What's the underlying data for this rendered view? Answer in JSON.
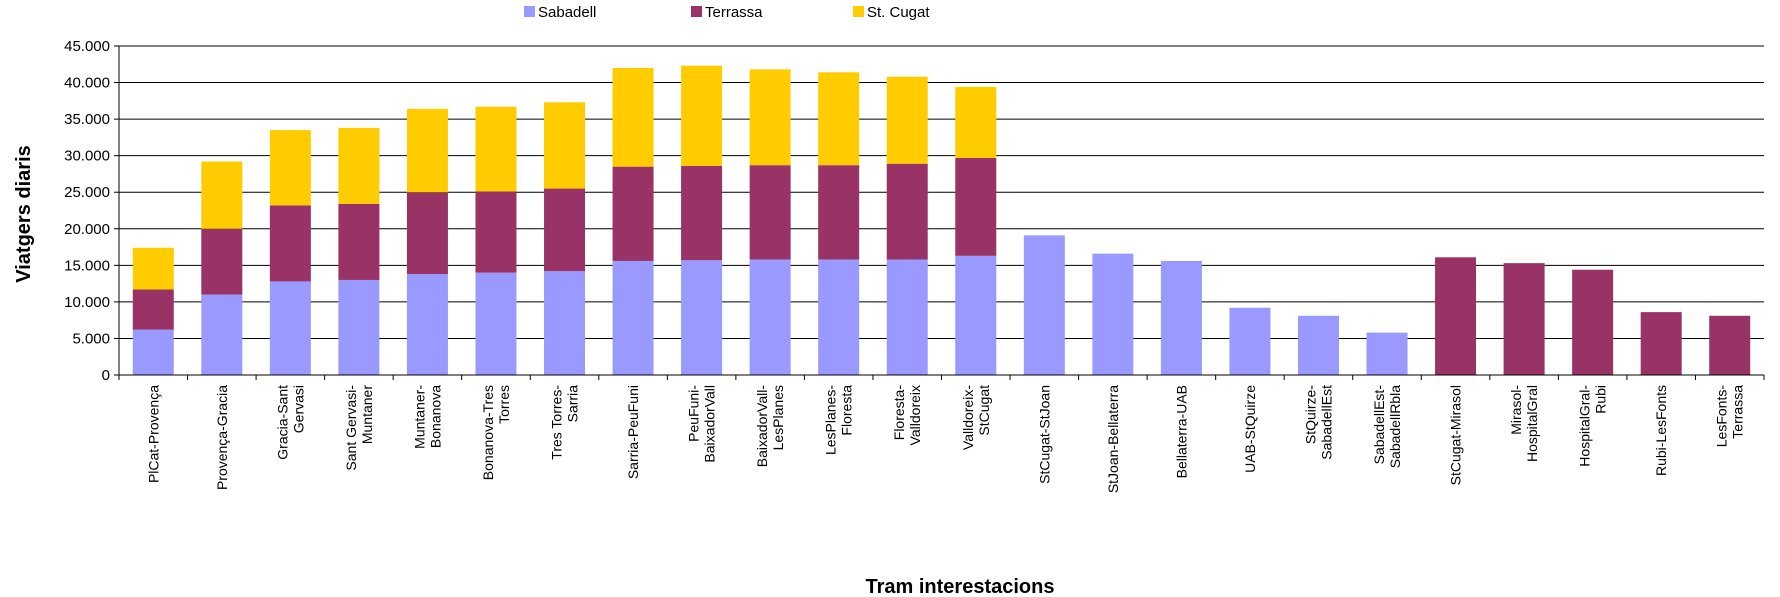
{
  "chart_data": {
    "type": "bar",
    "stacked": true,
    "title": "",
    "xlabel": "Tram interestacions",
    "ylabel": "Viatgers diaris",
    "ylim": [
      0,
      45000
    ],
    "yticks": [
      0,
      5000,
      10000,
      15000,
      20000,
      25000,
      30000,
      35000,
      40000,
      45000
    ],
    "ytick_labels": [
      "0",
      "5.000",
      "10.000",
      "15.000",
      "20.000",
      "25.000",
      "30.000",
      "35.000",
      "40.000",
      "45.000"
    ],
    "grid": true,
    "legend_position": "top-center",
    "categories": [
      [
        "PlCat-Provença"
      ],
      [
        "Provença-Gracia"
      ],
      [
        "Gracia-Sant",
        "Gervasi"
      ],
      [
        "Sant Gervasi-",
        "Muntaner"
      ],
      [
        "Muntaner-",
        "Bonanova"
      ],
      [
        "Bonanova-Tres",
        "Torres"
      ],
      [
        "Tres Torres-",
        "Sarria"
      ],
      [
        "Sarria-PeuFuni"
      ],
      [
        "PeuFuni-",
        "BaixadorVall"
      ],
      [
        "BaixadorVall-",
        "LesPlanes"
      ],
      [
        "LesPlanes-",
        "Floresta"
      ],
      [
        "Floresta-",
        "Valldoreix"
      ],
      [
        "Valldoreix-",
        "StCugat"
      ],
      [
        "StCugat-StJoan"
      ],
      [
        "StJoan-Bellaterra"
      ],
      [
        "Bellaterra-UAB"
      ],
      [
        "UAB-StQuirze"
      ],
      [
        "StQuirze-",
        "SabadellEst"
      ],
      [
        "SabadellEst-",
        "SabadellRbla"
      ],
      [
        "StCugat-Mirasol"
      ],
      [
        "Mirasol-",
        "HospitalGral"
      ],
      [
        "HospitalGral-",
        "Rubi"
      ],
      [
        "Rubi-LesFonts"
      ],
      [
        "LesFonts-",
        "Terrassa"
      ]
    ],
    "series": [
      {
        "name": "Sabadell",
        "color": "#9999ff",
        "values": [
          6200,
          11000,
          12800,
          13000,
          13800,
          14000,
          14200,
          15600,
          15700,
          15800,
          15800,
          15800,
          16300,
          19100,
          16600,
          15600,
          9200,
          8100,
          5800,
          0,
          0,
          0,
          0,
          0
        ]
      },
      {
        "name": "Terrassa",
        "color": "#993366",
        "values": [
          5500,
          9000,
          10400,
          10400,
          11200,
          11100,
          11300,
          12900,
          12900,
          12900,
          12900,
          13100,
          13400,
          0,
          0,
          0,
          0,
          0,
          0,
          16100,
          15300,
          14400,
          8600,
          8100
        ]
      },
      {
        "name": "St. Cugat",
        "color": "#ffcc00",
        "values": [
          5700,
          9200,
          10300,
          10400,
          11400,
          11600,
          11800,
          13500,
          13700,
          13100,
          12700,
          11900,
          9700,
          0,
          0,
          0,
          0,
          0,
          0,
          0,
          0,
          0,
          0,
          0
        ]
      }
    ]
  }
}
